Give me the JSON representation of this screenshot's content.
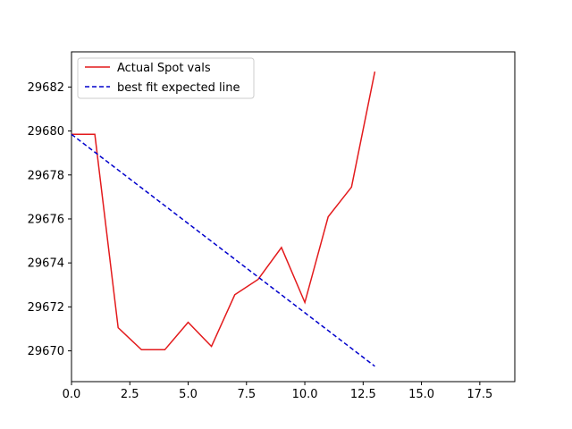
{
  "chart_data": {
    "type": "line",
    "title": "",
    "xlabel": "",
    "ylabel": "",
    "xlim": [
      0,
      19
    ],
    "ylim": [
      29668.6,
      29683.6
    ],
    "x_ticks": [
      0,
      2.5,
      5,
      7.5,
      10,
      12.5,
      15,
      17.5
    ],
    "x_tick_labels": [
      "0.0",
      "2.5",
      "5.0",
      "7.5",
      "10.0",
      "12.5",
      "15.0",
      "17.5"
    ],
    "y_ticks": [
      29670,
      29672,
      29674,
      29676,
      29678,
      29680,
      29682
    ],
    "y_tick_labels": [
      "29670",
      "29672",
      "29674",
      "29676",
      "29678",
      "29680",
      "29682"
    ],
    "grid": false,
    "legend_position": "upper-left",
    "series": [
      {
        "name": "Actual Spot vals",
        "color": "#e31a1c",
        "style": "solid",
        "x": [
          0,
          1,
          2,
          3,
          4,
          5,
          6,
          7,
          8,
          9,
          10,
          11,
          12,
          13
        ],
        "y": [
          29679.85,
          29679.85,
          29671.05,
          29670.05,
          29670.05,
          29671.3,
          29670.2,
          29672.55,
          29673.25,
          29674.7,
          29672.2,
          29676.1,
          29677.45,
          29682.7
        ]
      },
      {
        "name": "best fit expected line",
        "color": "#0000cc",
        "style": "dashed",
        "x": [
          0,
          13
        ],
        "y": [
          29679.85,
          29669.3
        ]
      }
    ]
  }
}
